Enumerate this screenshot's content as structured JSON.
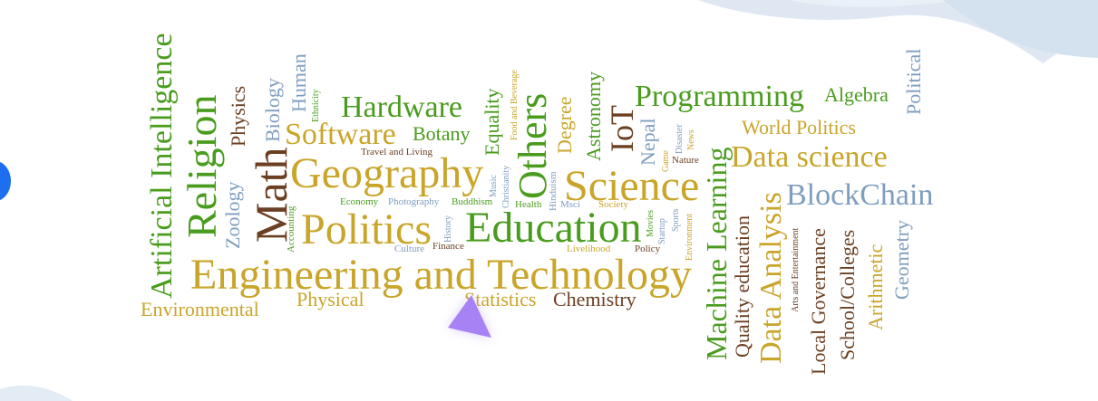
{
  "colors": {
    "green": "#4a9c1e",
    "gold": "#c9a52a",
    "brown": "#6b3f22",
    "blue": "#7f9dbf",
    "cursor": "#a782f5",
    "edge_accent": "#1d6ff0"
  },
  "icons": [
    "triangle-cursor-icon"
  ],
  "words": {
    "artificial_intelligence": "Artificial Intelligence",
    "religion": "Religion",
    "zoology": "Zoology",
    "physics": "Physics",
    "biology": "Biology",
    "human": "Human",
    "ethnicity": "Ethnicity",
    "math": "Math",
    "accounting": "Accounting",
    "hardware": "Hardware",
    "software": "Software",
    "botany": "Botany",
    "travel_and_living": "Travel and Living",
    "geography": "Geography",
    "economy": "Economy",
    "photography": "Photography",
    "buddhism": "Buddhism",
    "politics": "Politics",
    "culture": "Culture",
    "finance": "Finance",
    "history": "History",
    "equality": "Equality",
    "food_and_beverage": "Food and Beverage",
    "music": "Music",
    "christianity": "Christianity",
    "others": "Others",
    "hinduism": "Hinduism",
    "degree": "Degree",
    "health": "Health",
    "msci": "Msci",
    "education": "Education",
    "astronomy": "Astronomy",
    "science": "Science",
    "society": "Society",
    "livelihood": "Livelihood",
    "iot": "IoT",
    "nepal": "Nepal",
    "game": "Game",
    "movies": "Movies",
    "disaster": "Disaster",
    "startup": "Startup",
    "sports": "Sports",
    "news": "News",
    "nature": "Nature",
    "environment_small": "Environment",
    "policy": "Policy",
    "engineering_and_technology": "Engineering and Technology",
    "physical": "Physical",
    "environmental": "Environmental",
    "statistics": "Statistics",
    "chemistry": "Chemistry",
    "programming": "Programming",
    "algebra": "Algebra",
    "world_politics": "World Politics",
    "machine_learning": "Machine Learning",
    "data_science": "Data science",
    "blockchain": "BlockChain",
    "quality_education": "Quality education",
    "data_analysis": "Data Analysis",
    "arts_and_entertainment": "Arts and Entertainment",
    "local_governance": "Local Governance",
    "school_colleges": "School/Colleges",
    "arithmetic": "Arithmetic",
    "geometry": "Geometry",
    "political": "Political"
  }
}
